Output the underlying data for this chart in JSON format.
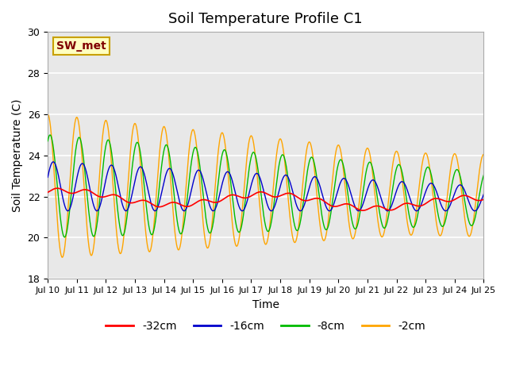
{
  "title": "Soil Temperature Profile C1",
  "xlabel": "Time",
  "ylabel": "Soil Temperature (C)",
  "ylim": [
    18,
    30
  ],
  "yticks": [
    18,
    20,
    22,
    24,
    26,
    28,
    30
  ],
  "xlim_days": [
    0,
    15
  ],
  "x_tick_labels": [
    "Jul 10",
    "Jul 11",
    "Jul 12",
    "Jul 13",
    "Jul 14",
    "Jul 15",
    "Jul 16",
    "Jul 17",
    "Jul 18",
    "Jul 19",
    "Jul 20",
    "Jul 21",
    "Jul 22",
    "Jul 23",
    "Jul 24",
    "Jul 25"
  ],
  "label_box_text": "SW_met",
  "label_box_facecolor": "#FFFFC0",
  "label_box_edgecolor": "#C8A000",
  "label_text_color": "#800000",
  "colors": {
    "-32cm": "#FF0000",
    "-16cm": "#0000CC",
    "-8cm": "#00BB00",
    "-2cm": "#FFA500"
  },
  "bg_color": "#E8E8E8",
  "grid_color": "#FFFFFF",
  "title_fontsize": 13,
  "axis_fontsize": 10,
  "tick_fontsize": 9,
  "legend_fontsize": 10
}
